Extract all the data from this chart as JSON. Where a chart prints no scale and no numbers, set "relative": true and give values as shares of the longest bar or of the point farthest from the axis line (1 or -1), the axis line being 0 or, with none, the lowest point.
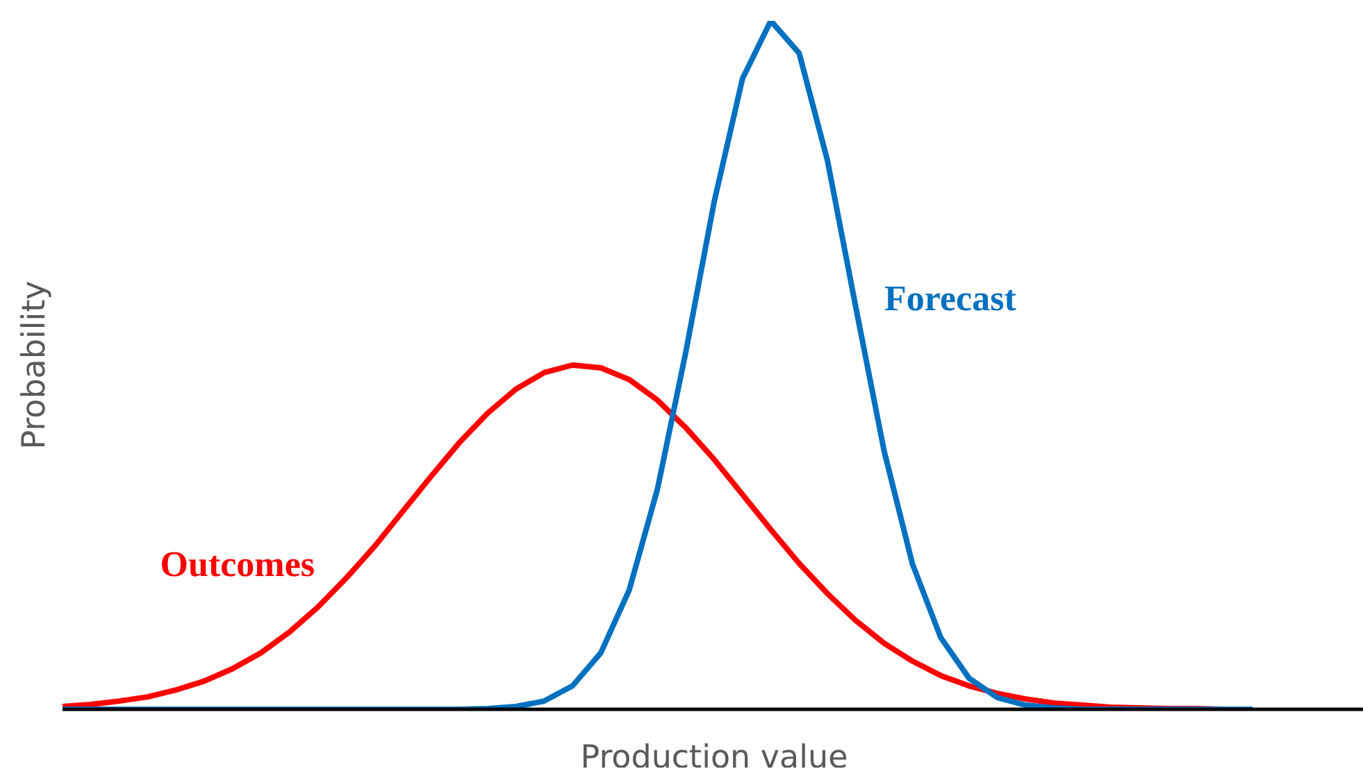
{
  "chart_data": {
    "type": "line",
    "relative": true,
    "xlabel": "Production value",
    "ylabel": "Probability",
    "grid": false,
    "legend": false,
    "marker": "none",
    "line_style": "solid",
    "categories": [
      null,
      null,
      null,
      null,
      null,
      null,
      null,
      null,
      null,
      null,
      null,
      null,
      null,
      null,
      null,
      null,
      null,
      null,
      null,
      null,
      null,
      null,
      null,
      null,
      null,
      null,
      null,
      null,
      null,
      null,
      null,
      null,
      null,
      null,
      null,
      null,
      null,
      null,
      null,
      null,
      null,
      null,
      null,
      null,
      null,
      null,
      null
    ],
    "series": [
      {
        "name": "Outcomes",
        "color": "#ff0000",
        "values": [
          0.004,
          0.007,
          0.012,
          0.018,
          0.028,
          0.041,
          0.059,
          0.082,
          0.112,
          0.148,
          0.19,
          0.236,
          0.287,
          0.338,
          0.387,
          0.43,
          0.465,
          0.489,
          0.5,
          0.496,
          0.479,
          0.449,
          0.409,
          0.363,
          0.312,
          0.261,
          0.212,
          0.168,
          0.129,
          0.096,
          0.07,
          0.049,
          0.034,
          0.023,
          0.015,
          0.009,
          0.006,
          0.003,
          0.002,
          0.001,
          0.001,
          0,
          0,
          null,
          null,
          null,
          null
        ]
      },
      {
        "name": "Forecast",
        "color": "#0070c0",
        "values": [
          0,
          0,
          0,
          0,
          0,
          0,
          0,
          0,
          0,
          0,
          0,
          0,
          0,
          0,
          0,
          0.001,
          0.004,
          0.012,
          0.034,
          0.082,
          0.173,
          0.32,
          0.519,
          0.737,
          0.916,
          1,
          0.953,
          0.797,
          0.584,
          0.375,
          0.211,
          0.104,
          0.045,
          0.017,
          0.006,
          0.002,
          0,
          0,
          0,
          0,
          0,
          0,
          0,
          null,
          null,
          null,
          null
        ]
      }
    ]
  }
}
